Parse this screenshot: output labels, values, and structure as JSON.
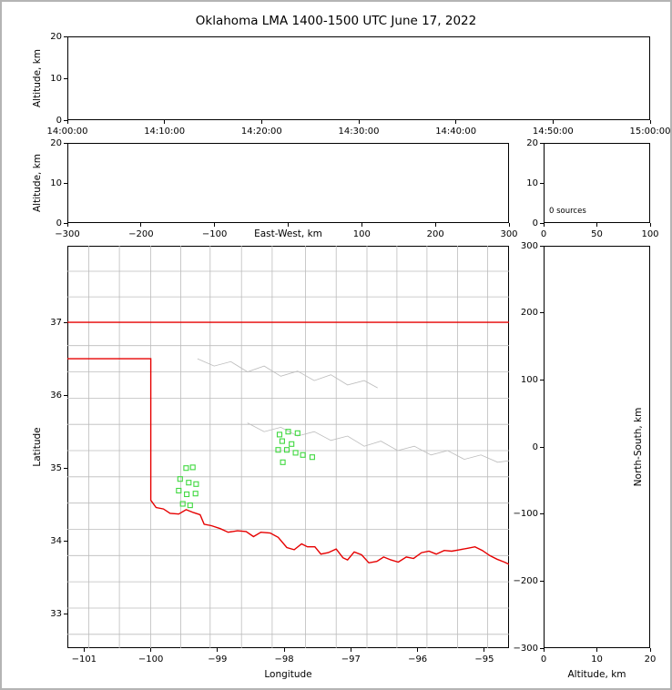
{
  "figure": {
    "title": "Oklahoma LMA 1400-1500 UTC June 17, 2022",
    "frame_color": "#b4b4b4",
    "background": "#ffffff",
    "axis_color": "#000000"
  },
  "chart_data": [
    {
      "id": "time_height",
      "name": "Altitude vs Time panel",
      "type": "scatter",
      "ylabel": "Altitude, km",
      "ylim": [
        0,
        20
      ],
      "yticks": [
        0,
        10,
        20
      ],
      "ytick_labels": [
        "0",
        "10",
        "20"
      ],
      "xlim": [
        0,
        6
      ],
      "xticks": [
        0,
        1,
        2,
        3,
        4,
        5,
        6
      ],
      "xtick_labels": [
        "14:00:00",
        "14:10:00",
        "14:20:00",
        "14:30:00",
        "14:40:00",
        "14:50:00",
        "15:00:00"
      ],
      "grid": false,
      "points": []
    },
    {
      "id": "ew_height",
      "name": "Altitude vs East-West panel",
      "type": "scatter",
      "xlabel": "East-West, km",
      "xlabel_inline": true,
      "ylabel": "Altitude, km",
      "xlim": [
        -300,
        300
      ],
      "xticks": [
        -300,
        -200,
        -100,
        0,
        100,
        200,
        300
      ],
      "xtick_labels": [
        "−300",
        "−200",
        "−100",
        "",
        "100",
        "200",
        "300"
      ],
      "ylim": [
        0,
        20
      ],
      "yticks": [
        0,
        10,
        20
      ],
      "ytick_labels": [
        "0",
        "10",
        "20"
      ],
      "grid": false,
      "points": []
    },
    {
      "id": "alt_histogram",
      "name": "Altitude histogram panel",
      "type": "line",
      "annotation": "0 sources",
      "xlim": [
        0,
        100
      ],
      "xticks": [
        0,
        50,
        100
      ],
      "xtick_labels": [
        "0",
        "50",
        "100"
      ],
      "ylim": [
        0,
        20
      ],
      "yticks": [
        0,
        10,
        20
      ],
      "ytick_labels": [
        "0",
        "10",
        "20"
      ],
      "grid": false,
      "points": []
    },
    {
      "id": "plan_view",
      "name": "Plan view map panel",
      "type": "scatter",
      "xlabel": "Longitude",
      "ylabel": "Latitude",
      "xlim": [
        -101.25,
        -94.63
      ],
      "xticks": [
        -101,
        -100,
        -99,
        -98,
        -97,
        -96,
        -95
      ],
      "xtick_labels": [
        "−101",
        "−100",
        "−99",
        "−98",
        "−97",
        "−96",
        "−95"
      ],
      "ylim": [
        32.53,
        38.05
      ],
      "yticks": [
        33,
        34,
        35,
        36,
        37
      ],
      "ytick_labels": [
        "33",
        "34",
        "35",
        "36",
        "37"
      ],
      "grid": false,
      "marker": {
        "shape": "open-square",
        "color": "#3fd83f",
        "size": 5
      },
      "points": [
        [
          -99.47,
          35.0
        ],
        [
          -99.37,
          35.01
        ],
        [
          -99.56,
          34.85
        ],
        [
          -99.43,
          34.8
        ],
        [
          -99.32,
          34.78
        ],
        [
          -99.58,
          34.69
        ],
        [
          -99.46,
          34.64
        ],
        [
          -99.33,
          34.65
        ],
        [
          -99.52,
          34.51
        ],
        [
          -99.41,
          34.49
        ],
        [
          -98.07,
          35.46
        ],
        [
          -97.94,
          35.5
        ],
        [
          -97.8,
          35.48
        ],
        [
          -98.03,
          35.37
        ],
        [
          -97.89,
          35.33
        ],
        [
          -98.09,
          35.25
        ],
        [
          -97.96,
          35.25
        ],
        [
          -97.83,
          35.21
        ],
        [
          -97.72,
          35.18
        ],
        [
          -98.02,
          35.08
        ],
        [
          -97.58,
          35.15
        ]
      ],
      "layers": {
        "county_lines": {
          "color": "#bcbcbc",
          "vlines": [
            -100.93,
            -100.47,
            -100.0,
            -99.55,
            -99.11,
            -98.64,
            -98.18,
            -97.68,
            -97.22,
            -96.76,
            -96.31,
            -95.86,
            -95.4,
            -94.95
          ],
          "hlines": [
            32.72,
            33.08,
            33.44,
            33.8,
            34.16,
            34.52,
            34.88,
            35.24,
            35.6,
            35.96,
            36.32,
            36.68,
            37.35,
            37.7
          ],
          "polylines": [
            [
              [
                -98.55,
                35.62
              ],
              [
                -98.3,
                35.5
              ],
              [
                -98.05,
                35.56
              ],
              [
                -97.8,
                35.44
              ],
              [
                -97.55,
                35.5
              ],
              [
                -97.3,
                35.38
              ],
              [
                -97.05,
                35.44
              ],
              [
                -96.8,
                35.3
              ],
              [
                -96.55,
                35.37
              ],
              [
                -96.3,
                35.24
              ],
              [
                -96.05,
                35.3
              ],
              [
                -95.8,
                35.18
              ],
              [
                -95.55,
                35.24
              ],
              [
                -95.3,
                35.12
              ],
              [
                -95.05,
                35.18
              ],
              [
                -94.8,
                35.08
              ],
              [
                -94.63,
                35.1
              ]
            ],
            [
              [
                -99.3,
                36.5
              ],
              [
                -99.05,
                36.4
              ],
              [
                -98.8,
                36.46
              ],
              [
                -98.55,
                36.32
              ],
              [
                -98.3,
                36.4
              ],
              [
                -98.05,
                36.26
              ],
              [
                -97.8,
                36.33
              ],
              [
                -97.55,
                36.2
              ],
              [
                -97.3,
                36.28
              ],
              [
                -97.05,
                36.14
              ],
              [
                -96.8,
                36.2
              ],
              [
                -96.6,
                36.1
              ]
            ]
          ]
        },
        "state_border": {
          "color": "#e60000",
          "polylines": [
            [
              [
                -101.25,
                37.0
              ],
              [
                -94.63,
                37.0
              ]
            ],
            [
              [
                -101.25,
                36.5
              ],
              [
                -100.0,
                36.5
              ],
              [
                -100.0,
                34.56
              ],
              [
                -99.92,
                34.46
              ],
              [
                -99.81,
                34.44
              ],
              [
                -99.71,
                34.38
              ],
              [
                -99.58,
                34.37
              ],
              [
                -99.47,
                34.43
              ],
              [
                -99.36,
                34.39
              ],
              [
                -99.26,
                34.36
              ],
              [
                -99.2,
                34.23
              ],
              [
                -99.09,
                34.21
              ],
              [
                -98.96,
                34.17
              ],
              [
                -98.84,
                34.12
              ],
              [
                -98.7,
                34.14
              ],
              [
                -98.57,
                34.13
              ],
              [
                -98.46,
                34.06
              ],
              [
                -98.35,
                34.12
              ],
              [
                -98.21,
                34.11
              ],
              [
                -98.09,
                34.05
              ],
              [
                -97.96,
                33.91
              ],
              [
                -97.85,
                33.88
              ],
              [
                -97.74,
                33.96
              ],
              [
                -97.65,
                33.92
              ],
              [
                -97.54,
                33.92
              ],
              [
                -97.45,
                33.82
              ],
              [
                -97.34,
                33.84
              ],
              [
                -97.22,
                33.89
              ],
              [
                -97.12,
                33.77
              ],
              [
                -97.05,
                33.74
              ],
              [
                -96.95,
                33.85
              ],
              [
                -96.84,
                33.81
              ],
              [
                -96.73,
                33.7
              ],
              [
                -96.61,
                33.72
              ],
              [
                -96.51,
                33.78
              ],
              [
                -96.4,
                33.74
              ],
              [
                -96.29,
                33.71
              ],
              [
                -96.17,
                33.78
              ],
              [
                -96.06,
                33.76
              ],
              [
                -95.94,
                33.84
              ],
              [
                -95.83,
                33.86
              ],
              [
                -95.72,
                33.82
              ],
              [
                -95.6,
                33.87
              ],
              [
                -95.49,
                33.86
              ],
              [
                -95.37,
                33.88
              ],
              [
                -95.25,
                33.9
              ],
              [
                -95.14,
                33.92
              ],
              [
                -95.03,
                33.87
              ],
              [
                -94.92,
                33.8
              ],
              [
                -94.81,
                33.75
              ],
              [
                -94.7,
                33.71
              ],
              [
                -94.63,
                33.68
              ]
            ]
          ]
        }
      }
    },
    {
      "id": "ns_height",
      "name": "North-South vs Altitude panel",
      "type": "scatter",
      "xlabel": "Altitude, km",
      "ylabel": "North-South, km",
      "ylabel_side": "right",
      "xlim": [
        0,
        20
      ],
      "xticks": [
        0,
        10,
        20
      ],
      "xtick_labels": [
        "0",
        "10",
        "20"
      ],
      "ylim": [
        -300,
        300
      ],
      "yticks": [
        -300,
        -200,
        -100,
        0,
        100,
        200,
        300
      ],
      "ytick_labels": [
        "−300",
        "−200",
        "−100",
        "0",
        "100",
        "200",
        "300"
      ],
      "grid": false,
      "points": []
    }
  ]
}
